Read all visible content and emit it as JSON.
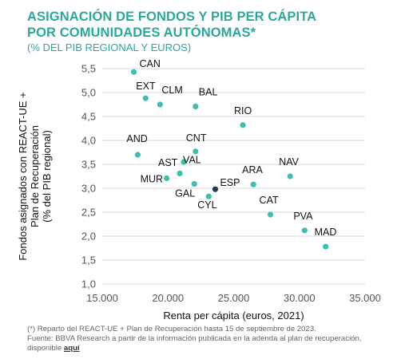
{
  "header": {
    "title_line1": "ASIGNACIÓN DE FONDOS Y PIB PER CÁPITA",
    "title_line2": "POR COMUNIDADES AUTÓNOMAS*",
    "subtitle": "(% DEL PIB REGIONAL Y EUROS)"
  },
  "colors": {
    "accent": "#2aa89a",
    "point": "#3dbfb0",
    "highlight": "#1e3a5f"
  },
  "chart_data": {
    "type": "scatter",
    "xlabel": "Renta per cápita (euros, 2021)",
    "ylabel_lines": [
      "Fondos asignados con REACT-UE +",
      "Plan de Recuperación",
      "(% del PIB regional)"
    ],
    "xlim": [
      15000,
      35000
    ],
    "ylim": [
      1.0,
      5.5
    ],
    "x_ticks": [
      "15.000",
      "20.000",
      "25.000",
      "30.000",
      "35.000"
    ],
    "x_tick_values": [
      15000,
      20000,
      25000,
      30000,
      35000
    ],
    "y_ticks": [
      "1,0",
      "1,5",
      "2,0",
      "2,5",
      "3,0",
      "3,5",
      "4,0",
      "4,5",
      "5,0",
      "5,5"
    ],
    "y_tick_values": [
      1.0,
      1.5,
      2.0,
      2.5,
      3.0,
      3.5,
      4.0,
      4.5,
      5.0,
      5.5
    ],
    "grid": "horizontal",
    "points": [
      {
        "label": "CAN",
        "x": 17400,
        "y": 5.43,
        "color": "point"
      },
      {
        "label": "EXT",
        "x": 18300,
        "y": 4.88,
        "color": "point"
      },
      {
        "label": "CLM",
        "x": 19400,
        "y": 4.75,
        "color": "point"
      },
      {
        "label": "BAL",
        "x": 22100,
        "y": 4.71,
        "color": "point"
      },
      {
        "label": "RIO",
        "x": 25700,
        "y": 4.32,
        "color": "point"
      },
      {
        "label": "CNT",
        "x": 22100,
        "y": 3.77,
        "color": "point"
      },
      {
        "label": "AND",
        "x": 17700,
        "y": 3.7,
        "color": "point"
      },
      {
        "label": "AST",
        "x": 21200,
        "y": 3.55,
        "color": "point"
      },
      {
        "label": "VAL",
        "x": 20900,
        "y": 3.31,
        "color": "point"
      },
      {
        "label": "NAV",
        "x": 29300,
        "y": 3.25,
        "color": "point"
      },
      {
        "label": "MUR",
        "x": 19900,
        "y": 3.21,
        "color": "point"
      },
      {
        "label": "ARA",
        "x": 26500,
        "y": 3.08,
        "color": "point"
      },
      {
        "label": "GAL",
        "x": 22000,
        "y": 3.09,
        "color": "point"
      },
      {
        "label": "ESP",
        "x": 23600,
        "y": 2.98,
        "color": "highlight"
      },
      {
        "label": "CYL",
        "x": 23100,
        "y": 2.83,
        "color": "point"
      },
      {
        "label": "CAT",
        "x": 27800,
        "y": 2.45,
        "color": "point"
      },
      {
        "label": "PVA",
        "x": 30400,
        "y": 2.12,
        "color": "point"
      },
      {
        "label": "MAD",
        "x": 32000,
        "y": 1.78,
        "color": "point"
      }
    ]
  },
  "footnotes": {
    "line1": "(*) Reparto del REACT-UE + Plan de Recuperación hasta 15 de septiembre de 2023.",
    "line2": "Fuente: BBVA Research a partir de la información publicada en la adenda al plan de recuperación,",
    "line3_prefix": "disponible ",
    "link_text": "aquí"
  }
}
